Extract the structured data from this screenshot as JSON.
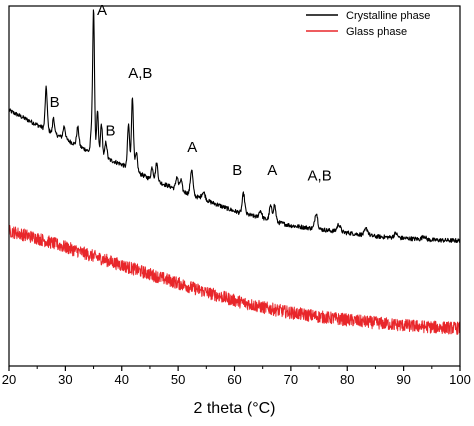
{
  "chart_data": {
    "type": "line",
    "title": "",
    "xlabel": "2 theta (°C)",
    "ylabel": "",
    "xlim": [
      20,
      100
    ],
    "xticks": [
      20,
      30,
      40,
      50,
      60,
      70,
      80,
      90,
      100
    ],
    "y_ticks_shown": false,
    "grid": false,
    "legend_position": "top-right",
    "series": [
      {
        "name": "Crystalline phase",
        "color": "#000000",
        "style": "noisy",
        "baseline": [
          [
            20,
            0.71
          ],
          [
            25,
            0.67
          ],
          [
            30,
            0.63
          ],
          [
            35,
            0.59
          ],
          [
            40,
            0.56
          ],
          [
            45,
            0.52
          ],
          [
            50,
            0.49
          ],
          [
            55,
            0.46
          ],
          [
            60,
            0.43
          ],
          [
            65,
            0.41
          ],
          [
            70,
            0.39
          ],
          [
            75,
            0.38
          ],
          [
            80,
            0.37
          ],
          [
            85,
            0.36
          ],
          [
            90,
            0.355
          ],
          [
            95,
            0.35
          ],
          [
            100,
            0.348
          ]
        ],
        "peaks": [
          [
            26.6,
            0.115,
            0.18
          ],
          [
            27.9,
            0.045,
            0.15
          ],
          [
            29.8,
            0.035,
            0.2
          ],
          [
            32.2,
            0.05,
            0.2
          ],
          [
            34.6,
            0.05,
            0.16
          ],
          [
            35.0,
            0.4,
            0.17
          ],
          [
            35.7,
            0.12,
            0.16
          ],
          [
            36.4,
            0.09,
            0.18
          ],
          [
            37.2,
            0.045,
            0.18
          ],
          [
            41.2,
            0.12,
            0.18
          ],
          [
            41.9,
            0.2,
            0.18
          ],
          [
            42.6,
            0.05,
            0.2
          ],
          [
            45.4,
            0.035,
            0.2
          ],
          [
            46.2,
            0.05,
            0.2
          ],
          [
            49.8,
            0.035,
            0.2
          ],
          [
            50.5,
            0.03,
            0.2
          ],
          [
            52.4,
            0.07,
            0.22
          ],
          [
            54.5,
            0.02,
            0.3
          ],
          [
            61.6,
            0.055,
            0.22
          ],
          [
            64.6,
            0.02,
            0.25
          ],
          [
            66.4,
            0.04,
            0.22
          ],
          [
            67.1,
            0.045,
            0.22
          ],
          [
            74.5,
            0.045,
            0.25
          ],
          [
            78.5,
            0.02,
            0.3
          ],
          [
            83.4,
            0.018,
            0.3
          ],
          [
            88.6,
            0.012,
            0.3
          ],
          [
            93.6,
            0.01,
            0.3
          ]
        ]
      },
      {
        "name": "Glass phase",
        "color": "#e8262a",
        "style": "noisy-band",
        "baseline": [
          [
            20,
            0.375
          ],
          [
            25,
            0.355
          ],
          [
            30,
            0.33
          ],
          [
            35,
            0.305
          ],
          [
            40,
            0.28
          ],
          [
            45,
            0.255
          ],
          [
            50,
            0.23
          ],
          [
            55,
            0.205
          ],
          [
            60,
            0.182
          ],
          [
            65,
            0.163
          ],
          [
            70,
            0.148
          ],
          [
            75,
            0.137
          ],
          [
            80,
            0.128
          ],
          [
            85,
            0.12
          ],
          [
            90,
            0.113
          ],
          [
            95,
            0.108
          ],
          [
            100,
            0.105
          ]
        ]
      }
    ],
    "annotations": [
      {
        "text": "A",
        "x": 36.5,
        "y": 0.975
      },
      {
        "text": "B",
        "x": 28.1,
        "y": 0.72
      },
      {
        "text": "B",
        "x": 38.0,
        "y": 0.64
      },
      {
        "text": "A,B",
        "x": 43.3,
        "y": 0.8
      },
      {
        "text": "A",
        "x": 52.5,
        "y": 0.595
      },
      {
        "text": "B",
        "x": 60.5,
        "y": 0.53
      },
      {
        "text": "A",
        "x": 66.7,
        "y": 0.53
      },
      {
        "text": "A,B",
        "x": 75.1,
        "y": 0.515
      }
    ]
  }
}
